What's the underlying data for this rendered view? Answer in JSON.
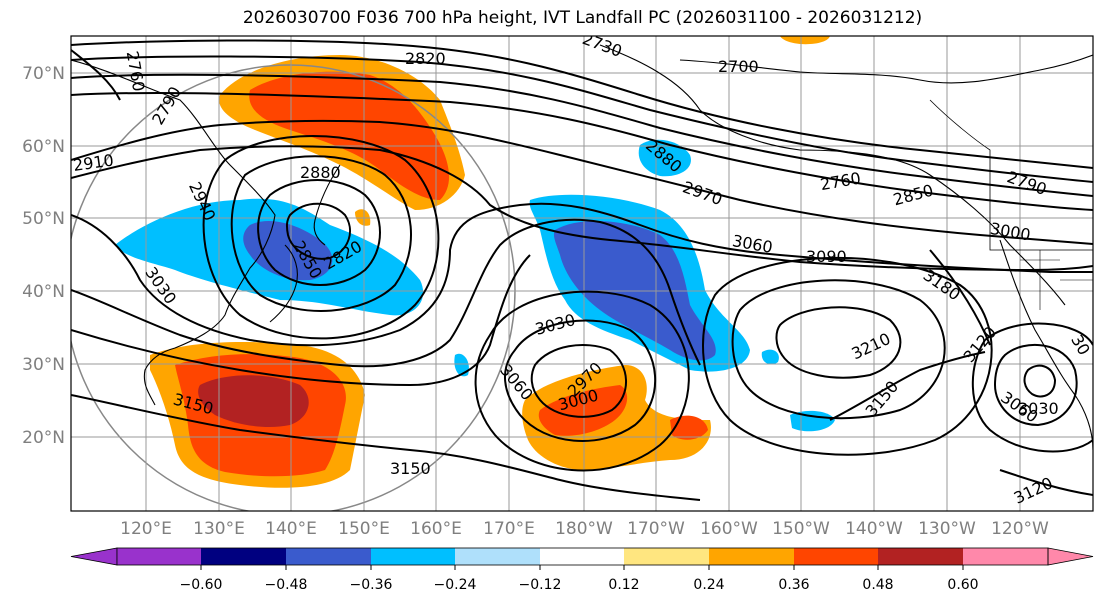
{
  "title": "2026030700 F036 700 hPa height, IVT Landfall PC (2026031100 - 2026031212)",
  "lat_labels": [
    "70°N",
    "60°N",
    "50°N",
    "40°N",
    "30°N",
    "20°N"
  ],
  "lon_labels": [
    "120°E",
    "130°E",
    "140°E",
    "150°E",
    "160°E",
    "170°E",
    "180°W",
    "170°W",
    "160°W",
    "150°W",
    "140°W",
    "130°W",
    "120°W"
  ],
  "contour_labels": [
    "2820",
    "2730",
    "2700",
    "2760",
    "2790",
    "2910",
    "2880",
    "2940",
    "2850",
    "2820",
    "3030",
    "2880",
    "2970",
    "2760",
    "2850",
    "2790",
    "3000",
    "3060",
    "3090",
    "3180",
    "3210",
    "3120",
    "3030",
    "3000",
    "2970",
    "3060",
    "3150",
    "3150",
    "3060",
    "3030",
    "3120",
    "3150",
    "30"
  ],
  "colorbar": {
    "ticks": [
      "−0.60",
      "−0.48",
      "−0.36",
      "−0.24",
      "−0.12",
      "0.12",
      "0.24",
      "0.36",
      "0.48",
      "0.60"
    ],
    "colors": [
      "#9932cc",
      "#000080",
      "#3a5bcd",
      "#00bfff",
      "#afe0fb",
      "#ffffff",
      "#ffe680",
      "#ffa500",
      "#ff4500",
      "#b22222",
      "#ff88aa"
    ]
  },
  "colors": {
    "negative_deep": "#3a5bcd",
    "negative": "#00bfff",
    "positive_light": "#ffa500",
    "positive": "#ff4500",
    "positive_deep": "#b22222",
    "grid": "#999999"
  }
}
